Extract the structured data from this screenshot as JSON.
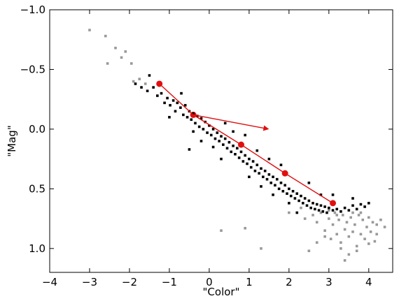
{
  "chart_data": {
    "type": "scatter",
    "title": "",
    "xlabel": "\"Color\"",
    "ylabel": "\"Mag\"",
    "xlim": [
      -4,
      4.6
    ],
    "ylim": [
      1.2,
      -1.0
    ],
    "y_inverted": true,
    "grid": false,
    "legend": "none",
    "x_ticks": [
      {
        "value": -4,
        "label": "−4"
      },
      {
        "value": -3,
        "label": "−3"
      },
      {
        "value": -2,
        "label": "−2"
      },
      {
        "value": -1,
        "label": "−1"
      },
      {
        "value": 0,
        "label": "0"
      },
      {
        "value": 1,
        "label": "1"
      },
      {
        "value": 2,
        "label": "2"
      },
      {
        "value": 3,
        "label": "3"
      },
      {
        "value": 4,
        "label": "4"
      }
    ],
    "y_ticks": [
      {
        "value": -1.0,
        "label": "−1.0"
      },
      {
        "value": -0.5,
        "label": "−0.5"
      },
      {
        "value": 0.0,
        "label": "0.0"
      },
      {
        "value": 0.5,
        "label": "0.5"
      },
      {
        "value": 1.0,
        "label": "1.0"
      }
    ],
    "colors": {
      "background": "#ffffff",
      "frame": "#000000",
      "black_points": "#000000",
      "gray_points": "#999999",
      "red": "#e01010"
    },
    "series": [
      {
        "color": "#000000",
        "marker": "square",
        "points": [
          [
            -1.85,
            -0.38
          ],
          [
            -1.7,
            -0.35
          ],
          [
            -1.55,
            -0.32
          ],
          [
            -1.4,
            -0.35
          ],
          [
            -1.3,
            -0.28
          ],
          [
            -1.2,
            -0.3
          ],
          [
            -1.12,
            -0.22
          ],
          [
            -1.05,
            -0.26
          ],
          [
            -0.98,
            -0.2
          ],
          [
            -0.9,
            -0.24
          ],
          [
            -0.85,
            -0.15
          ],
          [
            -0.8,
            -0.22
          ],
          [
            -0.72,
            -0.18
          ],
          [
            -0.65,
            -0.12
          ],
          [
            -0.6,
            -0.2
          ],
          [
            -0.55,
            -0.1
          ],
          [
            -0.5,
            -0.15
          ],
          [
            -0.45,
            -0.08
          ],
          [
            -0.4,
            -0.13
          ],
          [
            -0.35,
            -0.05
          ],
          [
            -0.3,
            -0.11
          ],
          [
            -0.25,
            -0.02
          ],
          [
            -0.2,
            -0.09
          ],
          [
            -0.15,
            0.0
          ],
          [
            -0.1,
            -0.06
          ],
          [
            -0.05,
            0.03
          ],
          [
            0.0,
            -0.03
          ],
          [
            0.05,
            0.05
          ],
          [
            0.1,
            0.0
          ],
          [
            0.15,
            0.08
          ],
          [
            0.2,
            0.03
          ],
          [
            0.25,
            0.1
          ],
          [
            0.3,
            0.06
          ],
          [
            0.35,
            0.13
          ],
          [
            0.4,
            0.08
          ],
          [
            0.45,
            0.16
          ],
          [
            0.5,
            0.11
          ],
          [
            0.55,
            0.19
          ],
          [
            0.6,
            0.14
          ],
          [
            0.65,
            0.21
          ],
          [
            0.7,
            0.16
          ],
          [
            0.75,
            0.24
          ],
          [
            0.8,
            0.19
          ],
          [
            0.85,
            0.27
          ],
          [
            0.9,
            0.22
          ],
          [
            0.95,
            0.29
          ],
          [
            1.0,
            0.25
          ],
          [
            1.05,
            0.32
          ],
          [
            1.1,
            0.27
          ],
          [
            1.15,
            0.35
          ],
          [
            1.2,
            0.3
          ],
          [
            1.25,
            0.37
          ],
          [
            1.3,
            0.33
          ],
          [
            1.35,
            0.4
          ],
          [
            1.4,
            0.35
          ],
          [
            1.45,
            0.42
          ],
          [
            1.5,
            0.38
          ],
          [
            1.55,
            0.45
          ],
          [
            1.6,
            0.4
          ],
          [
            1.65,
            0.47
          ],
          [
            1.7,
            0.42
          ],
          [
            1.75,
            0.5
          ],
          [
            1.8,
            0.45
          ],
          [
            1.85,
            0.52
          ],
          [
            1.9,
            0.47
          ],
          [
            1.95,
            0.54
          ],
          [
            2.0,
            0.5
          ],
          [
            2.05,
            0.56
          ],
          [
            2.1,
            0.52
          ],
          [
            2.15,
            0.58
          ],
          [
            2.2,
            0.54
          ],
          [
            2.25,
            0.6
          ],
          [
            2.3,
            0.56
          ],
          [
            2.35,
            0.62
          ],
          [
            2.4,
            0.58
          ],
          [
            2.45,
            0.64
          ],
          [
            2.5,
            0.6
          ],
          [
            2.55,
            0.66
          ],
          [
            2.6,
            0.62
          ],
          [
            2.65,
            0.67
          ],
          [
            2.7,
            0.63
          ],
          [
            2.75,
            0.68
          ],
          [
            2.8,
            0.64
          ],
          [
            2.85,
            0.69
          ],
          [
            2.9,
            0.65
          ],
          [
            2.95,
            0.7
          ],
          [
            3.0,
            0.66
          ],
          [
            3.1,
            0.68
          ],
          [
            3.2,
            0.67
          ],
          [
            3.3,
            0.69
          ],
          [
            3.4,
            0.66
          ],
          [
            3.5,
            0.68
          ],
          [
            3.6,
            0.64
          ],
          [
            3.7,
            0.67
          ],
          [
            3.8,
            0.63
          ],
          [
            3.9,
            0.65
          ],
          [
            4.0,
            0.62
          ],
          [
            -0.7,
            -0.3
          ],
          [
            -0.4,
            0.02
          ],
          [
            0.1,
            0.15
          ],
          [
            0.6,
            0.02
          ],
          [
            1.0,
            0.4
          ],
          [
            1.5,
            0.25
          ],
          [
            2.0,
            0.62
          ],
          [
            2.5,
            0.45
          ],
          [
            -0.5,
            0.17
          ],
          [
            1.8,
            0.3
          ],
          [
            0.3,
            0.25
          ],
          [
            1.2,
            0.18
          ],
          [
            2.8,
            0.55
          ],
          [
            -1.5,
            -0.45
          ],
          [
            -0.2,
            0.1
          ],
          [
            0.9,
            0.05
          ],
          [
            1.6,
            0.55
          ],
          [
            2.2,
            0.7
          ],
          [
            3.1,
            0.55
          ],
          [
            3.6,
            0.58
          ],
          [
            -1.0,
            -0.1
          ],
          [
            0.4,
            -0.05
          ],
          [
            1.3,
            0.48
          ]
        ]
      },
      {
        "color": "#999999",
        "marker": "square",
        "points": [
          [
            -3.0,
            -0.83
          ],
          [
            -2.6,
            -0.78
          ],
          [
            -2.35,
            -0.68
          ],
          [
            -2.1,
            -0.65
          ],
          [
            -2.55,
            -0.55
          ],
          [
            -1.95,
            -0.55
          ],
          [
            -2.2,
            -0.6
          ],
          [
            -1.75,
            -0.42
          ],
          [
            -1.9,
            -0.4
          ],
          [
            -1.6,
            -0.38
          ],
          [
            0.3,
            0.85
          ],
          [
            0.9,
            0.83
          ],
          [
            1.3,
            1.0
          ],
          [
            2.0,
            0.7
          ],
          [
            2.3,
            0.66
          ],
          [
            2.6,
            0.72
          ],
          [
            2.7,
            0.78
          ],
          [
            2.8,
            0.7
          ],
          [
            2.9,
            0.85
          ],
          [
            3.0,
            0.75
          ],
          [
            3.05,
            0.92
          ],
          [
            3.1,
            0.8
          ],
          [
            3.15,
            0.7
          ],
          [
            3.2,
            0.88
          ],
          [
            3.25,
            0.76
          ],
          [
            3.3,
            0.95
          ],
          [
            3.35,
            0.72
          ],
          [
            3.4,
            0.84
          ],
          [
            3.45,
            0.78
          ],
          [
            3.5,
            0.9
          ],
          [
            3.55,
            0.74
          ],
          [
            3.6,
            0.86
          ],
          [
            3.65,
            0.8
          ],
          [
            3.7,
            0.98
          ],
          [
            3.75,
            0.72
          ],
          [
            3.8,
            0.88
          ],
          [
            3.85,
            0.76
          ],
          [
            3.9,
            0.92
          ],
          [
            3.95,
            0.82
          ],
          [
            4.0,
            0.74
          ],
          [
            4.05,
            0.86
          ],
          [
            4.1,
            0.78
          ],
          [
            4.15,
            0.94
          ],
          [
            4.2,
            0.8
          ],
          [
            4.3,
            0.76
          ],
          [
            4.4,
            0.82
          ],
          [
            3.5,
            1.05
          ],
          [
            3.4,
            1.1
          ],
          [
            2.5,
            1.02
          ],
          [
            2.7,
            0.95
          ],
          [
            3.0,
            0.68
          ],
          [
            3.2,
            0.72
          ],
          [
            3.6,
            0.7
          ],
          [
            3.8,
            0.7
          ],
          [
            2.4,
            0.75
          ],
          [
            2.9,
            0.9
          ],
          [
            3.3,
            1.0
          ],
          [
            3.7,
            1.02
          ],
          [
            4.0,
            0.96
          ],
          [
            4.2,
            0.88
          ]
        ]
      },
      {
        "color": "#e01010",
        "marker": "circle",
        "points": [
          [
            -1.25,
            -0.38
          ],
          [
            -0.4,
            -0.12
          ],
          [
            0.8,
            0.13
          ],
          [
            1.9,
            0.37
          ],
          [
            3.1,
            0.62
          ]
        ]
      }
    ],
    "annotations": [
      {
        "type": "arrow",
        "from": [
          -0.4,
          -0.12
        ],
        "to": [
          1.5,
          0.0
        ],
        "color": "#e01010"
      }
    ]
  }
}
